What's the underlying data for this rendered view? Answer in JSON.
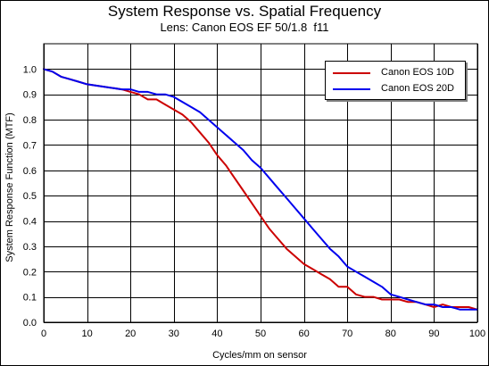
{
  "chart_data": {
    "type": "line",
    "title": "System Response vs. Spatial Frequency",
    "subtitle": "Lens: Canon EOS EF 50/1.8  f11",
    "xlabel": "Cycles/mm on sensor",
    "ylabel": "System Response Function (MTF)",
    "xlim": [
      0,
      100
    ],
    "ylim": [
      0,
      1.1
    ],
    "xticks": [
      0,
      10,
      20,
      30,
      40,
      50,
      60,
      70,
      80,
      90,
      100
    ],
    "yticks": [
      0.0,
      0.1,
      0.2,
      0.3,
      0.4,
      0.5,
      0.6,
      0.7,
      0.8,
      0.9,
      1.0
    ],
    "ytick_labels": [
      "0.0",
      "0.1",
      "0.2",
      "0.3",
      "0.4",
      "0.5",
      "0.6",
      "0.7",
      "0.8",
      "0.9",
      "1.0"
    ],
    "grid": true,
    "legend_position": "top-right",
    "series": [
      {
        "name": "Canon EOS 10D",
        "color": "#cc0000",
        "x": [
          0,
          2,
          4,
          6,
          8,
          10,
          14,
          18,
          20,
          22,
          24,
          26,
          28,
          30,
          32,
          34,
          36,
          38,
          40,
          42,
          44,
          46,
          48,
          50,
          52,
          54,
          56,
          58,
          60,
          62,
          64,
          66,
          68,
          70,
          72,
          74,
          76,
          78,
          80,
          82,
          84,
          86,
          88,
          90,
          92,
          94,
          96,
          98,
          100
        ],
        "y": [
          1.0,
          0.99,
          0.97,
          0.96,
          0.95,
          0.94,
          0.93,
          0.92,
          0.91,
          0.9,
          0.88,
          0.88,
          0.86,
          0.84,
          0.82,
          0.79,
          0.75,
          0.71,
          0.66,
          0.62,
          0.57,
          0.52,
          0.47,
          0.42,
          0.37,
          0.33,
          0.29,
          0.26,
          0.23,
          0.21,
          0.19,
          0.17,
          0.14,
          0.14,
          0.11,
          0.1,
          0.1,
          0.09,
          0.09,
          0.09,
          0.08,
          0.08,
          0.07,
          0.06,
          0.07,
          0.06,
          0.06,
          0.06,
          0.05
        ]
      },
      {
        "name": "Canon EOS 20D",
        "color": "#0000ee",
        "x": [
          0,
          2,
          4,
          6,
          8,
          10,
          14,
          18,
          20,
          22,
          24,
          26,
          28,
          30,
          32,
          34,
          36,
          38,
          40,
          42,
          44,
          46,
          48,
          50,
          52,
          54,
          56,
          58,
          60,
          62,
          64,
          66,
          68,
          70,
          72,
          74,
          76,
          78,
          80,
          82,
          84,
          86,
          88,
          90,
          92,
          94,
          96,
          98,
          100
        ],
        "y": [
          1.0,
          0.99,
          0.97,
          0.96,
          0.95,
          0.94,
          0.93,
          0.92,
          0.92,
          0.91,
          0.91,
          0.9,
          0.9,
          0.89,
          0.87,
          0.85,
          0.83,
          0.8,
          0.77,
          0.74,
          0.71,
          0.68,
          0.64,
          0.61,
          0.57,
          0.53,
          0.49,
          0.45,
          0.41,
          0.37,
          0.33,
          0.29,
          0.26,
          0.22,
          0.2,
          0.18,
          0.16,
          0.14,
          0.11,
          0.1,
          0.09,
          0.08,
          0.07,
          0.07,
          0.06,
          0.06,
          0.05,
          0.05,
          0.05
        ]
      }
    ]
  }
}
